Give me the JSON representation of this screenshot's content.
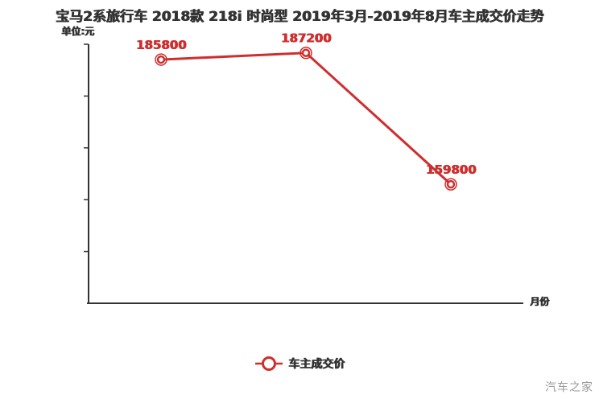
{
  "title": "宝马2系旅行车 2018款 218i 时尚型 2019年3月-2019年8月车主成交价走势",
  "unit_label": "单位:元",
  "xaxis_label": "月份",
  "legend": {
    "label": "车主成交价"
  },
  "watermark": "汽车之家",
  "colors": {
    "line": "#cf2e2e",
    "point_label": "#cf2e2e",
    "axis": "#333333",
    "text": "#333333",
    "watermark": "#9b9b9b"
  },
  "chart_data": {
    "type": "line",
    "title": "宝马2系旅行车 2018款 218i 时尚型 2019年3月-2019年8月车主成交价走势",
    "xlabel": "月份",
    "ylabel": "单位:元",
    "x_tick_labels": [],
    "series": [
      {
        "name": "车主成交价",
        "values": [
          185800,
          187200,
          159800
        ]
      }
    ],
    "point_labels": [
      "185800",
      "187200",
      "159800"
    ],
    "ylim": [
      135000,
      189000
    ],
    "y_ticks_count": 5,
    "grid": false,
    "legend_position": "bottom"
  }
}
